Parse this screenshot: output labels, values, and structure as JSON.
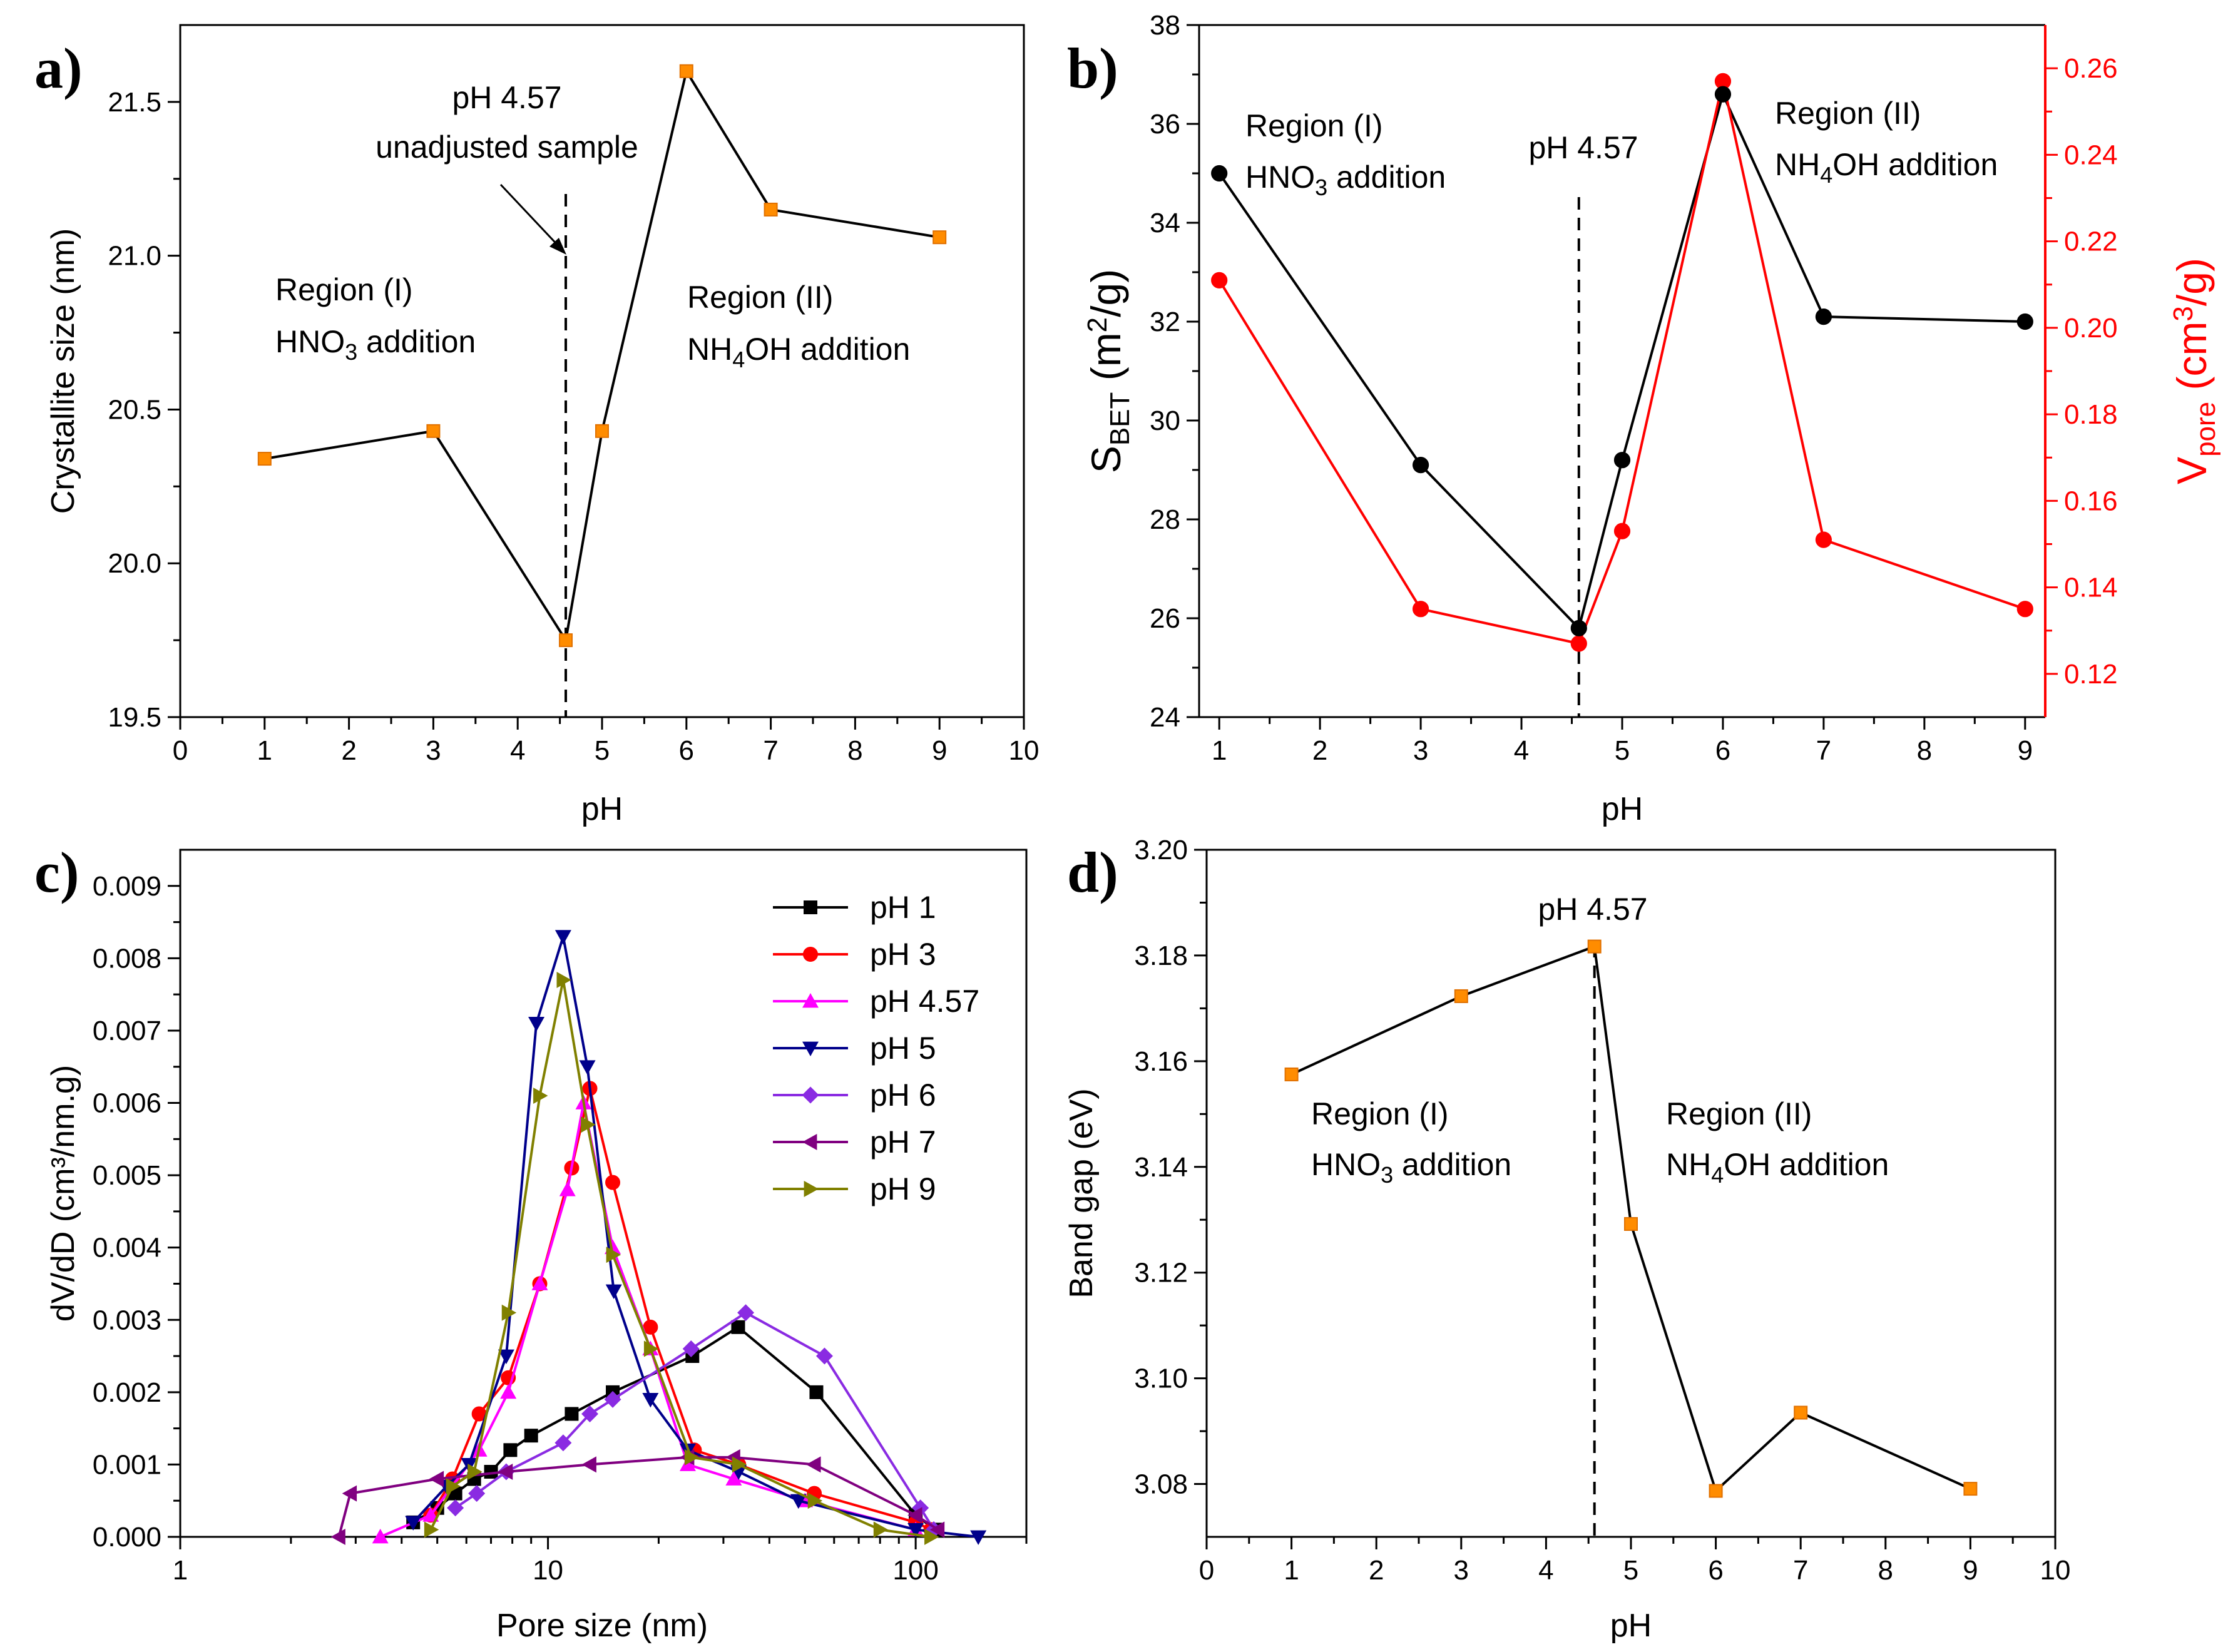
{
  "chart_data": [
    {
      "id": "a",
      "panel_label": "a)",
      "type": "line",
      "xlabel": "pH",
      "ylabel": "Crystallite size (nm)",
      "xlim": [
        0,
        10
      ],
      "ylim": [
        19.5,
        21.75
      ],
      "xticks": [
        "0",
        "1",
        "2",
        "3",
        "4",
        "5",
        "6",
        "7",
        "8",
        "9",
        "10"
      ],
      "yticks": [
        "19.5",
        "20.0",
        "20.5",
        "21.0",
        "21.5"
      ],
      "series": [
        {
          "name": "Crystallite size",
          "x": [
            1,
            3,
            4.57,
            5,
            6,
            7,
            9
          ],
          "y": [
            20.34,
            20.43,
            19.75,
            20.43,
            21.6,
            21.15,
            21.06
          ]
        }
      ],
      "vline_x": 4.57,
      "annotations": {
        "marker_line1": "pH 4.57",
        "marker_line2": "unadjusted sample",
        "region1_title": "Region (I)",
        "region1_reagent": "HNO",
        "region1_reagent_tail": " addition",
        "region1_sub": "3",
        "region2_title": "Region (II)",
        "region2_reagent": "NH",
        "region2_reagent_tail": "OH addition",
        "region2_sub": "4"
      }
    },
    {
      "id": "b",
      "panel_label": "b)",
      "type": "line",
      "xlabel": "pH",
      "ylabel_main": "S",
      "ylabel_sub": "BET",
      "ylabel_unit_pre": " (m",
      "ylabel_unit_sup": "2",
      "ylabel_unit_post": "/g)",
      "y2label_main": "V",
      "y2label_sub": "pore",
      "y2label_unit_pre": " (cm",
      "y2label_unit_sup": "3",
      "y2label_unit_post": "/g)",
      "xlim": [
        0.8,
        9.2
      ],
      "ylim": [
        24,
        38
      ],
      "y2lim": [
        0.11,
        0.27
      ],
      "xticks": [
        "1",
        "2",
        "3",
        "4",
        "5",
        "6",
        "7",
        "8",
        "9"
      ],
      "yticks": [
        "24",
        "26",
        "28",
        "30",
        "32",
        "34",
        "36",
        "38"
      ],
      "y2ticks": [
        "0.12",
        "0.14",
        "0.16",
        "0.18",
        "0.20",
        "0.22",
        "0.24",
        "0.26"
      ],
      "series": [
        {
          "name": "S_BET",
          "axis": "left",
          "color": "#000000",
          "x": [
            1,
            3,
            4.57,
            5,
            6,
            7,
            9
          ],
          "y": [
            35.0,
            29.1,
            25.8,
            29.2,
            36.6,
            32.1,
            32.0
          ]
        },
        {
          "name": "V_pore",
          "axis": "right",
          "color": "#ff0000",
          "x": [
            1,
            3,
            4.57,
            5,
            6,
            7,
            9
          ],
          "y": [
            0.211,
            0.135,
            0.127,
            0.153,
            0.257,
            0.151,
            0.135
          ]
        }
      ],
      "vline_x": 4.57,
      "annotations": {
        "marker_line1": "pH 4.57",
        "region1_title": "Region (I)",
        "region1_reagent": "HNO",
        "region1_reagent_tail": " addition",
        "region1_sub": "3",
        "region2_title": "Region (II)",
        "region2_reagent": "NH",
        "region2_reagent_tail": "OH addition",
        "region2_sub": "4"
      }
    },
    {
      "id": "c",
      "panel_label": "c)",
      "type": "line",
      "xscale": "log",
      "xlabel": "Pore size (nm)",
      "ylabel": "dV/dD (cm³/nm.g)",
      "xlim": [
        1,
        200
      ],
      "ylim": [
        0,
        0.0095
      ],
      "xticks": [
        "1",
        "10",
        "100"
      ],
      "yticks": [
        "0.000",
        "0.001",
        "0.002",
        "0.003",
        "0.004",
        "0.005",
        "0.006",
        "0.007",
        "0.008",
        "0.009"
      ],
      "series": [
        {
          "name": "pH 1",
          "color": "#000000",
          "marker": "square",
          "x": [
            4.3,
            5.0,
            5.6,
            6.3,
            7.0,
            7.9,
            9.0,
            11.6,
            15.0,
            24.7,
            32.9,
            53.7,
            100,
            113
          ],
          "y": [
            0.0002,
            0.0004,
            0.0006,
            0.0008,
            0.0009,
            0.0012,
            0.0014,
            0.0017,
            0.002,
            0.0025,
            0.0029,
            0.002,
            0.0003,
            0.0001
          ]
        },
        {
          "name": "pH 3",
          "color": "#ff0000",
          "marker": "circle",
          "x": [
            4.8,
            5.5,
            6.5,
            7.8,
            9.5,
            11.6,
            13.0,
            15.0,
            19.0,
            25.0,
            33.0,
            53.0,
            100,
            110
          ],
          "y": [
            0.0003,
            0.0008,
            0.0017,
            0.0022,
            0.0035,
            0.0051,
            0.0062,
            0.0049,
            0.0029,
            0.0012,
            0.001,
            0.0006,
            0.0002,
            0.0001
          ]
        },
        {
          "name": "pH 4.57",
          "color": "#ff00ff",
          "marker": "triangle-up",
          "x": [
            3.5,
            4.8,
            6.5,
            7.8,
            9.5,
            11.3,
            12.5,
            15.0,
            19.0,
            24.0,
            32.0,
            50.0,
            100
          ],
          "y": [
            0.0,
            0.0003,
            0.0012,
            0.002,
            0.0035,
            0.0048,
            0.006,
            0.004,
            0.0026,
            0.001,
            0.0008,
            0.0005,
            0.0001
          ]
        },
        {
          "name": "pH 5",
          "color": "#00008b",
          "marker": "triangle-down",
          "x": [
            4.3,
            5.3,
            6.1,
            7.7,
            9.3,
            11.0,
            12.8,
            15.1,
            19.0,
            24.0,
            33.0,
            48.0,
            100,
            148
          ],
          "y": [
            0.0002,
            0.0007,
            0.001,
            0.0025,
            0.0071,
            0.0083,
            0.0065,
            0.0034,
            0.0019,
            0.0012,
            0.0009,
            0.0005,
            0.0001,
            0.0
          ]
        },
        {
          "name": "pH 6",
          "color": "#8a2be2",
          "marker": "diamond",
          "x": [
            5.6,
            6.4,
            7.7,
            11.0,
            13.0,
            15.0,
            24.5,
            34.5,
            56.5,
            103,
            112
          ],
          "y": [
            0.0004,
            0.0006,
            0.0009,
            0.0013,
            0.0017,
            0.0019,
            0.0026,
            0.0031,
            0.0025,
            0.0004,
            0.0001
          ]
        },
        {
          "name": "pH 7",
          "color": "#800080",
          "marker": "triangle-left",
          "x": [
            2.7,
            2.9,
            5.0,
            7.7,
            13.0,
            24.0,
            32.0,
            53.0,
            100,
            115
          ],
          "y": [
            0.0,
            0.0006,
            0.0008,
            0.0009,
            0.001,
            0.0011,
            0.0011,
            0.001,
            0.0003,
            0.0001
          ]
        },
        {
          "name": "pH 9",
          "color": "#808000",
          "marker": "triangle-right",
          "x": [
            4.8,
            5.5,
            6.3,
            7.8,
            9.5,
            11.0,
            12.8,
            15.0,
            19.0,
            24.5,
            33.0,
            53.0,
            80.0,
            110
          ],
          "y": [
            0.0001,
            0.0007,
            0.0009,
            0.0031,
            0.0061,
            0.0077,
            0.0057,
            0.0039,
            0.0026,
            0.0011,
            0.001,
            0.0005,
            0.0001,
            0.0
          ]
        }
      ]
    },
    {
      "id": "d",
      "panel_label": "d)",
      "type": "line",
      "xlabel": "pH",
      "ylabel": "Band gap (eV)",
      "xlim": [
        0,
        10
      ],
      "ylim": [
        3.07,
        3.2
      ],
      "xticks": [
        "0",
        "1",
        "2",
        "3",
        "4",
        "5",
        "6",
        "7",
        "8",
        "9",
        "10"
      ],
      "yticks": [
        "3.08",
        "3.10",
        "3.12",
        "3.14",
        "3.16",
        "3.18",
        "3.20"
      ],
      "series": [
        {
          "name": "Band gap",
          "x": [
            1,
            3,
            4.57,
            5,
            6,
            7,
            9
          ],
          "y": [
            3.1575,
            3.1723,
            3.1817,
            3.1292,
            3.0787,
            3.0935,
            3.0791
          ]
        }
      ],
      "vline_x": 4.57,
      "annotations": {
        "marker_line1": "pH 4.57",
        "region1_title": "Region (I)",
        "region1_reagent": "HNO",
        "region1_reagent_tail": " addition",
        "region1_sub": "3",
        "region2_title": "Region (II)",
        "region2_reagent": "NH",
        "region2_reagent_tail": "OH addition",
        "region2_sub": "4"
      }
    }
  ],
  "colors": {
    "axis": "#000000",
    "line_black": "#000000",
    "marker_orange": "#ff8c00",
    "marker_orange_edge": "#e07000",
    "red_axis": "#ff0000"
  }
}
